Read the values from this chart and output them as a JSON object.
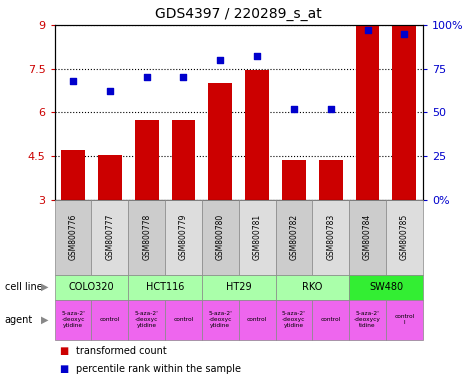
{
  "title": "GDS4397 / 220289_s_at",
  "samples": [
    "GSM800776",
    "GSM800777",
    "GSM800778",
    "GSM800779",
    "GSM800780",
    "GSM800781",
    "GSM800782",
    "GSM800783",
    "GSM800784",
    "GSM800785"
  ],
  "bar_values": [
    4.7,
    4.55,
    5.75,
    5.75,
    7.0,
    7.45,
    4.35,
    4.35,
    8.95,
    8.95
  ],
  "dot_values": [
    68,
    62,
    70,
    70,
    80,
    82,
    52,
    52,
    97,
    95
  ],
  "ylim": [
    3,
    9
  ],
  "y_ticks": [
    3,
    4.5,
    6,
    7.5,
    9
  ],
  "y2_ticks": [
    0,
    25,
    50,
    75,
    100
  ],
  "bar_color": "#cc0000",
  "dot_color": "#0000cc",
  "cell_lines": [
    {
      "label": "COLO320",
      "start": 0,
      "end": 2,
      "color": "#aaffaa"
    },
    {
      "label": "HCT116",
      "start": 2,
      "end": 4,
      "color": "#aaffaa"
    },
    {
      "label": "HT29",
      "start": 4,
      "end": 6,
      "color": "#aaffaa"
    },
    {
      "label": "RKO",
      "start": 6,
      "end": 8,
      "color": "#aaffaa"
    },
    {
      "label": "SW480",
      "start": 8,
      "end": 10,
      "color": "#33ee33"
    }
  ],
  "agent_labels": [
    {
      "label": "5-aza-2'\n-deoxyc\nytidine",
      "start": 0,
      "end": 1,
      "color": "#ee66ee"
    },
    {
      "label": "control",
      "start": 1,
      "end": 2,
      "color": "#ee66ee"
    },
    {
      "label": "5-aza-2'\n-deoxyc\nytidine",
      "start": 2,
      "end": 3,
      "color": "#ee66ee"
    },
    {
      "label": "control",
      "start": 3,
      "end": 4,
      "color": "#ee66ee"
    },
    {
      "label": "5-aza-2'\n-deoxyc\nytidine",
      "start": 4,
      "end": 5,
      "color": "#ee66ee"
    },
    {
      "label": "control",
      "start": 5,
      "end": 6,
      "color": "#ee66ee"
    },
    {
      "label": "5-aza-2'\n-deoxyc\nytidine",
      "start": 6,
      "end": 7,
      "color": "#ee66ee"
    },
    {
      "label": "control",
      "start": 7,
      "end": 8,
      "color": "#ee66ee"
    },
    {
      "label": "5-aza-2'\n-deoxycy\ntidine",
      "start": 8,
      "end": 9,
      "color": "#ee66ee"
    },
    {
      "label": "control\nl",
      "start": 9,
      "end": 10,
      "color": "#ee66ee"
    }
  ],
  "legend_bar_label": "transformed count",
  "legend_dot_label": "percentile rank within the sample",
  "cell_line_label": "cell line",
  "agent_label": "agent",
  "background_color": "#ffffff",
  "tick_color_left": "#cc0000",
  "tick_color_right": "#0000cc",
  "sample_box_color_even": "#cccccc",
  "sample_box_color_odd": "#dddddd"
}
